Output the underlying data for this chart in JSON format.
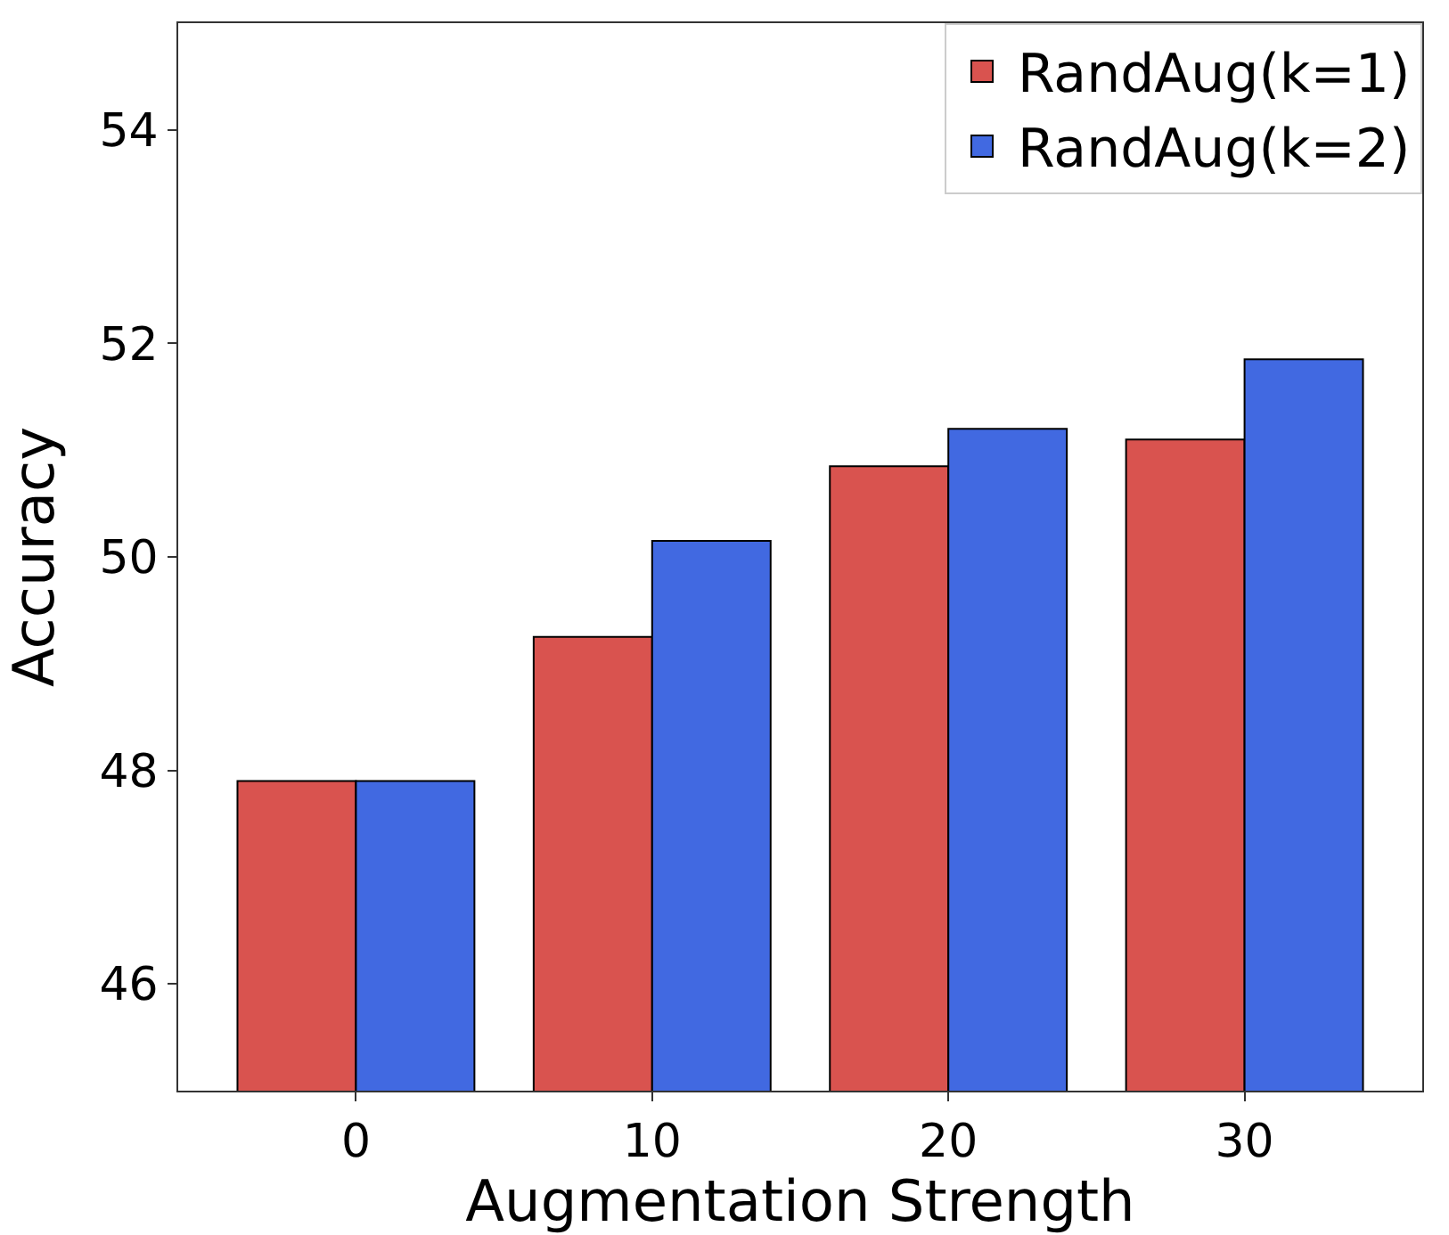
{
  "chart_data": {
    "type": "bar",
    "xlabel": "Augmentation Strength",
    "ylabel": "Accuracy",
    "categories": [
      "0",
      "10",
      "20",
      "30"
    ],
    "series": [
      {
        "name": "RandAug(k=1)",
        "color": "#d9534f",
        "values": [
          47.9,
          49.25,
          50.85,
          51.1
        ]
      },
      {
        "name": "RandAug(k=2)",
        "color": "#4169e1",
        "values": [
          47.9,
          50.15,
          51.2,
          51.85
        ]
      }
    ],
    "ylim": [
      45,
      55
    ],
    "yticks": [
      46,
      48,
      50,
      52,
      54
    ],
    "legend": "top right"
  }
}
